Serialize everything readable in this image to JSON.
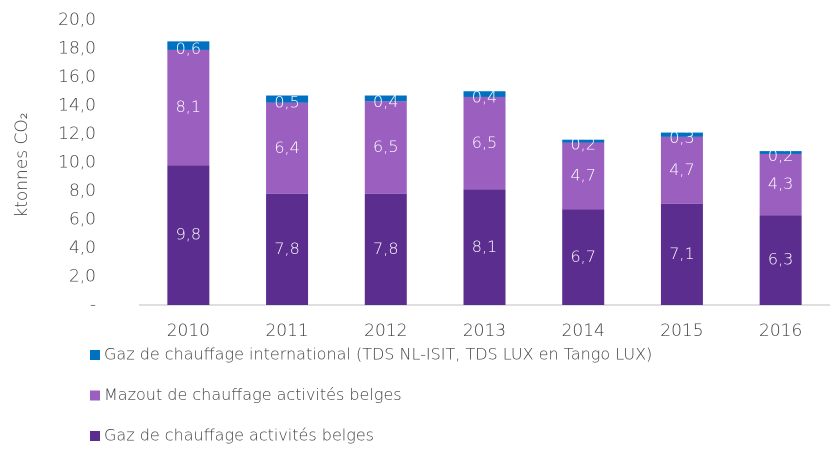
{
  "chart_data": {
    "type": "bar",
    "stacked": true,
    "y_label": "ktonnes CO₂",
    "categories": [
      "2010",
      "2011",
      "2012",
      "2013",
      "2014",
      "2015",
      "2016"
    ],
    "series": [
      {
        "name": "Gaz de chauffage activités belges",
        "color": "#5b2d8e",
        "values": [
          9.8,
          7.8,
          7.8,
          8.1,
          6.7,
          7.1,
          6.3
        ],
        "value_labels": [
          "9,8",
          "7,8",
          "7,8",
          "8,1",
          "6,7",
          "7,1",
          "6,3"
        ]
      },
      {
        "name": "Mazout de chauffage activités belges",
        "color": "#9b5fc0",
        "values": [
          8.1,
          6.4,
          6.5,
          6.5,
          4.7,
          4.7,
          4.3
        ],
        "value_labels": [
          "8,1",
          "6,4",
          "6,5",
          "6,5",
          "4,7",
          "4,7",
          "4,3"
        ]
      },
      {
        "name": "Gaz de chauffage international (TDS NL-ISIT, TDS LUX en Tango LUX)",
        "color": "#0070c0",
        "values": [
          0.6,
          0.5,
          0.4,
          0.4,
          0.2,
          0.3,
          0.2
        ],
        "value_labels": [
          "0,6",
          "0,5",
          "0,4",
          "0,4",
          "0,2",
          "0,3",
          "0,2"
        ]
      }
    ],
    "ylim": [
      0,
      20
    ],
    "yticks": [
      {
        "value": 0,
        "label": "-"
      },
      {
        "value": 2,
        "label": "2,0"
      },
      {
        "value": 4,
        "label": "4,0"
      },
      {
        "value": 6,
        "label": "6,0"
      },
      {
        "value": 8,
        "label": "8,0"
      },
      {
        "value": 10,
        "label": "10,0"
      },
      {
        "value": 12,
        "label": "12,0"
      },
      {
        "value": 14,
        "label": "14,0"
      },
      {
        "value": 16,
        "label": "16,0"
      },
      {
        "value": 18,
        "label": "18,0"
      },
      {
        "value": 20,
        "label": "20,0"
      }
    ],
    "legend": "bottom"
  }
}
